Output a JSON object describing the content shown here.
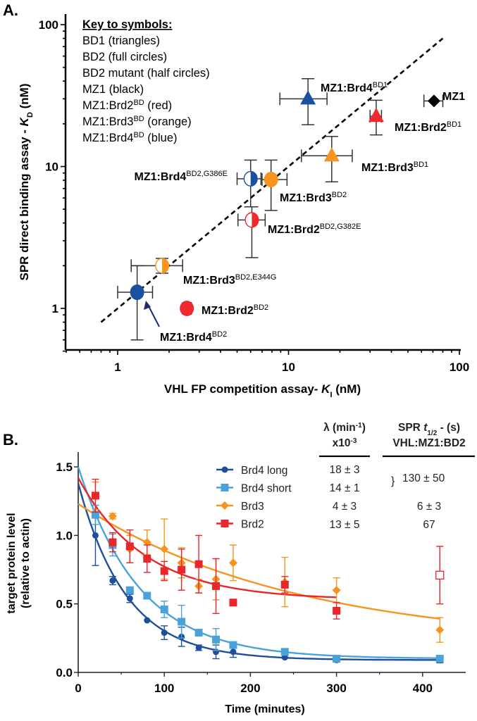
{
  "chart_data": [
    {
      "type": "scatter",
      "panel_label": "A.",
      "xlabel": {
        "text": "VHL FP competition assay- ",
        "italic": "K",
        "sub": "I",
        "unit": " (nM)"
      },
      "ylabel": {
        "text": "SPR direct binding assay - ",
        "italic": "K",
        "sub": "D",
        "unit": " (nM)"
      },
      "xscale": "log",
      "yscale": "log",
      "xlim": [
        0.5,
        100
      ],
      "ylim": [
        0.5,
        100
      ],
      "xticks": [
        "1",
        "10",
        "100"
      ],
      "yticks": [
        "1",
        "10",
        "100"
      ],
      "grid": false,
      "key": {
        "title": "Key to symbols:",
        "lines": [
          {
            "text": "BD1 (triangles)"
          },
          {
            "text": "BD2 (full circles)"
          },
          {
            "text": "BD2 mutant (half circles)"
          },
          {
            "text": "MZ1 (black)"
          },
          {
            "text": "MZ1:Brd2",
            "sup": "BD",
            "rest": " (red)"
          },
          {
            "text": "MZ1:Brd3",
            "sup": "BD",
            "rest": " (orange)"
          },
          {
            "text": "MZ1:Brd4",
            "sup": "BD",
            "rest": " (blue)"
          }
        ]
      },
      "trendline": {
        "style": "dashed",
        "x": [
          0.8,
          80
        ],
        "y": [
          0.8,
          80
        ]
      },
      "colors": {
        "Brd2": "#ee2a2e",
        "Brd3": "#f7941d",
        "Brd4": "#1b50a0",
        "MZ1": "#000000"
      },
      "points": [
        {
          "label": "MZ1:Brd4",
          "sup": "BD1",
          "color": "Brd4",
          "marker": "triangle",
          "x": 13,
          "y": 30,
          "xerr": [
            8.9,
            16.8
          ],
          "yerr": [
            19.7,
            41.6
          ]
        },
        {
          "label": "MZ1",
          "sup": "",
          "color": "MZ1",
          "marker": "diamond",
          "x": 71,
          "y": 29,
          "xerr": [
            62,
            80
          ],
          "yerr": null
        },
        {
          "label": "MZ1:Brd2",
          "sup": "BD1",
          "color": "Brd2",
          "marker": "triangle",
          "x": 32.6,
          "y": 22.6,
          "xerr": [
            30,
            35
          ],
          "yerr": [
            16.7,
            29.3
          ]
        },
        {
          "label": "MZ1:Brd3",
          "sup": "BD1",
          "color": "Brd3",
          "marker": "triangle",
          "x": 17.9,
          "y": 11.9,
          "xerr": [
            11.9,
            23.6
          ],
          "yerr": [
            7.8,
            16.3
          ]
        },
        {
          "label": "MZ1:Brd4",
          "sup": "BD2,G386E",
          "color": "Brd4",
          "marker": "half-circle",
          "x": 6.0,
          "y": 8.2,
          "xerr": [
            5.0,
            6.9
          ],
          "yerr": [
            5.2,
            11.1
          ]
        },
        {
          "label": "MZ1:Brd3",
          "sup": "BD2",
          "color": "Brd3",
          "marker": "circle",
          "x": 7.9,
          "y": 8.1,
          "xerr": [
            7.0,
            9.8
          ],
          "yerr": [
            4.9,
            11.1
          ]
        },
        {
          "label": "MZ1:Brd2",
          "sup": "BD2,G382E",
          "color": "Brd2",
          "marker": "half-circle",
          "x": 6.1,
          "y": 4.2,
          "xerr": [
            5.06,
            7.3
          ],
          "yerr": [
            2.28,
            5.2
          ]
        },
        {
          "label": "MZ1:Brd3",
          "sup": "BD2,E344G",
          "color": "Brd3",
          "marker": "half-circle",
          "x": 1.82,
          "y": 2.0,
          "xerr": [
            1.2,
            2.4
          ],
          "yerr": [
            1.77,
            2.25
          ]
        },
        {
          "label": "MZ1:Brd2",
          "sup": "BD2",
          "color": "Brd2",
          "marker": "circle",
          "x": 2.54,
          "y": 1.0,
          "xerr": [
            2.4,
            2.7
          ],
          "yerr": null
        },
        {
          "label": "MZ1:Brd4",
          "sup": "BD2",
          "color": "Brd4",
          "marker": "circle",
          "x": 1.3,
          "y": 1.3,
          "xerr": [
            1.0,
            1.6
          ],
          "yerr": [
            0.6,
            2.0
          ]
        }
      ]
    },
    {
      "type": "line",
      "panel_label": "B.",
      "xlabel": "Time (minutes)",
      "ylabel": [
        "target protein level",
        "(relative to actin)"
      ],
      "xlim": [
        0,
        450
      ],
      "ylim": [
        0,
        1.6
      ],
      "xticks": [
        "0",
        "100",
        "200",
        "300",
        "400"
      ],
      "yticks": [
        "0.0",
        "0.5",
        "1.0",
        "1.5"
      ],
      "grid": false,
      "legend_position": "top-center",
      "series": [
        {
          "name": "Brd4 long",
          "color": "#1f4e9c",
          "marker": "circle",
          "x": [
            20,
            40,
            60,
            80,
            100,
            120,
            140,
            160,
            180,
            240,
            300,
            420
          ],
          "y": [
            1.0,
            0.67,
            0.54,
            0.38,
            0.29,
            0.26,
            0.18,
            0.15,
            0.15,
            0.11,
            0.09,
            0.09
          ],
          "err": [
            0.22,
            0.03,
            0.03,
            0.01,
            0.05,
            0.07,
            0.02,
            0.05,
            0.04,
            0.01,
            0.01,
            0.02
          ],
          "fit": {
            "start": 1.38,
            "plateau": 0.09,
            "k": 0.018,
            "xmax": 420
          }
        },
        {
          "name": "Brd4 short",
          "color": "#4aa2db",
          "marker": "square",
          "x": [
            20,
            40,
            60,
            80,
            100,
            120,
            140,
            160,
            180,
            240,
            300,
            420
          ],
          "y": [
            1.15,
            0.93,
            0.6,
            0.56,
            0.46,
            0.37,
            0.29,
            0.24,
            0.2,
            0.15,
            0.1,
            0.1
          ],
          "err": [
            0.07,
            0.08,
            0.01,
            0.02,
            0.06,
            0.12,
            0.02,
            0.08,
            0.02,
            0.01,
            0.01,
            0.02
          ],
          "fit": {
            "start": 1.5,
            "plateau": 0.1,
            "k": 0.014,
            "xmax": 420
          }
        },
        {
          "name": "Brd3",
          "color": "#f7941d",
          "marker": "diamond",
          "x": [
            20,
            40,
            60,
            80,
            100,
            120,
            140,
            160,
            180,
            240,
            300,
            420
          ],
          "y": [
            1.29,
            1.14,
            0.9,
            0.95,
            0.9,
            0.8,
            0.63,
            0.68,
            0.8,
            0.66,
            0.6,
            0.31
          ],
          "err": [
            0.1,
            0.02,
            0.1,
            0.09,
            0.22,
            0.11,
            0.05,
            0.15,
            0.13,
            0.18,
            0.09,
            0.09
          ],
          "fit": {
            "start": 1.23,
            "plateau": 0.2,
            "k": 0.004,
            "xmax": 420
          }
        },
        {
          "name": "Brd2",
          "color": "#e8262b",
          "marker": "square",
          "x": [
            20,
            40,
            60,
            80,
            100,
            120,
            140,
            160,
            180,
            240,
            300,
            420
          ],
          "y": [
            1.29,
            0.95,
            0.92,
            0.83,
            0.74,
            0.75,
            0.79,
            0.63,
            0.51,
            0.64,
            0.45,
            0.71
          ],
          "err": [
            0.12,
            0.07,
            0.12,
            0.1,
            0.07,
            0.15,
            0.21,
            0.2,
            0.02,
            0.06,
            0.06,
            0.21
          ],
          "open_last": true,
          "fit": {
            "start": 1.42,
            "plateau": 0.53,
            "k": 0.013,
            "xmax": 300
          }
        }
      ],
      "table": {
        "col1_header": [
          "λ (min",
          "-1",
          ")",
          "x10",
          "-3"
        ],
        "col2_header_line1": [
          "SPR ",
          "t",
          "1/2",
          " -  (s)"
        ],
        "col2_header_line2": "VHL:MZ1:BD2",
        "col1": [
          "18 ± 3",
          "14 ± 1",
          "4 ± 3",
          "13 ± 5"
        ],
        "col2_group": "130 ± 50",
        "col2": [
          "6 ± 3",
          "67"
        ]
      }
    }
  ]
}
